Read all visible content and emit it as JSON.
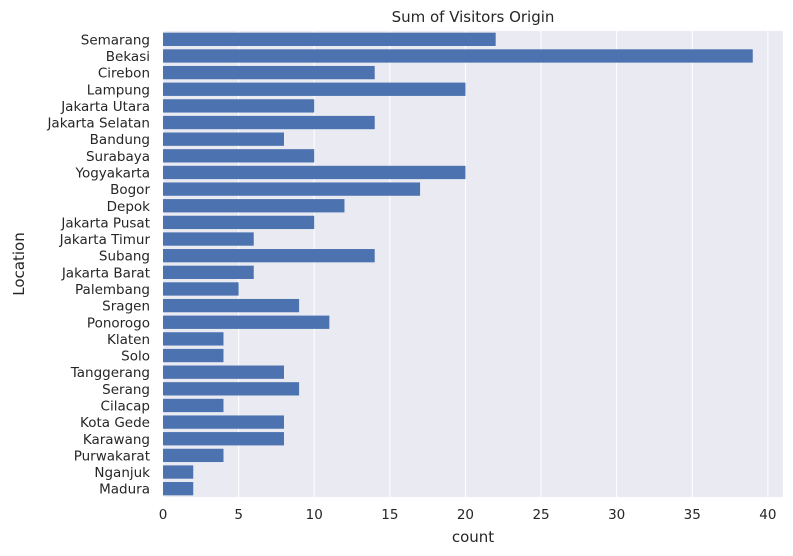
{
  "chart_data": {
    "type": "bar",
    "orientation": "horizontal",
    "title": "Sum of Visitors Origin",
    "xlabel": "count",
    "ylabel": "Location",
    "xlim": [
      0,
      41
    ],
    "x_ticks": [
      0,
      5,
      10,
      15,
      20,
      25,
      30,
      35,
      40
    ],
    "grid": true,
    "categories": [
      "Semarang",
      "Bekasi",
      "Cirebon",
      "Lampung",
      "Jakarta Utara",
      "Jakarta Selatan",
      "Bandung",
      "Surabaya",
      "Yogyakarta",
      "Bogor",
      "Depok",
      "Jakarta Pusat",
      "Jakarta Timur",
      "Subang",
      "Jakarta Barat",
      "Palembang",
      "Sragen",
      "Ponorogo",
      "Klaten",
      "Solo",
      "Tanggerang",
      "Serang",
      "Cilacap",
      "Kota Gede",
      "Karawang",
      "Purwakarat",
      "Nganjuk",
      "Madura"
    ],
    "values": [
      22,
      39,
      14,
      20,
      10,
      14,
      8,
      10,
      20,
      17,
      12,
      10,
      6,
      14,
      6,
      5,
      9,
      11,
      4,
      4,
      8,
      9,
      4,
      8,
      8,
      4,
      2,
      2
    ],
    "colors": {
      "bar": "#4c72b0",
      "plot_background": "#eaeaf2",
      "grid": "#ffffff",
      "text": "#262626"
    }
  }
}
